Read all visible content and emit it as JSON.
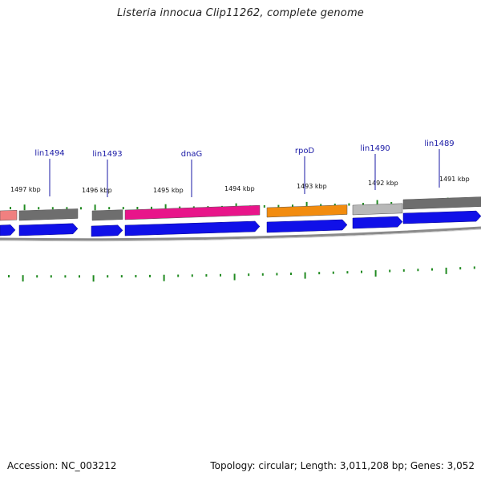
{
  "title": "Listeria innocua Clip11262, complete genome",
  "footer": {
    "accession": "Accession: NC_003212",
    "summary": "Topology: circular; Length: 3,011,208 bp; Genes: 3,052"
  },
  "colors": {
    "strand_blue": "#1010e8",
    "backbone_gray": "#888888",
    "tick_green": "#228b22",
    "label_blue": "#1a1aa6",
    "dnaG_pink": "#e8158a",
    "rpoD_orange": "#f28c0f",
    "gene_gray": "#6e6e6e",
    "gene_lightgray": "#b8b8b8",
    "gene_salmon": "#f08080"
  },
  "kbp_labels": [
    "1497 kbp",
    "1496 kbp",
    "1495 kbp",
    "1494 kbp",
    "1493 kbp",
    "1492 kbp",
    "1491 kbp"
  ],
  "genes": [
    {
      "name": "lin1494",
      "color": "gene_gray"
    },
    {
      "name": "lin1493",
      "color": "gene_gray"
    },
    {
      "name": "dnaG",
      "color": "dnaG_pink"
    },
    {
      "name": "rpoD",
      "color": "rpoD_orange"
    },
    {
      "name": "lin1490",
      "color": "gene_lightgray"
    },
    {
      "name": "lin1489",
      "color": "gene_gray"
    }
  ]
}
